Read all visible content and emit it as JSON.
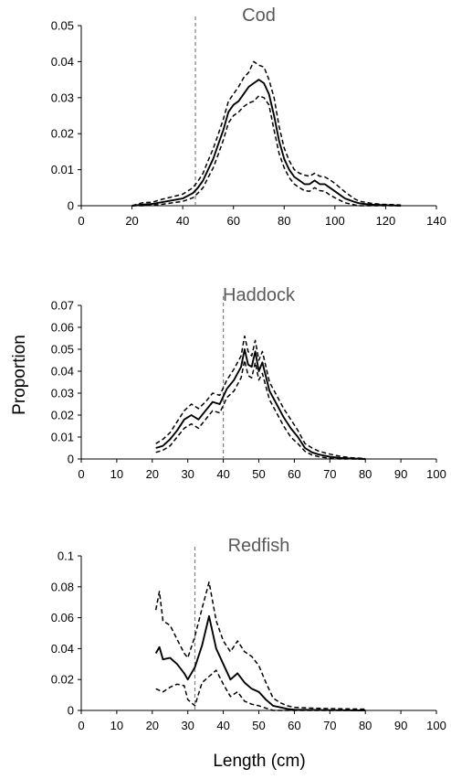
{
  "figure": {
    "ylabel": "Proportion",
    "xlabel": "Length (cm)"
  },
  "chart_data": [
    {
      "type": "line",
      "title": "Cod",
      "xlim": [
        0,
        140
      ],
      "ylim": [
        0,
        0.05
      ],
      "xticks": [
        "0",
        "20",
        "40",
        "60",
        "80",
        "100",
        "120",
        "140"
      ],
      "yticks": [
        "0",
        "0.01",
        "0.02",
        "0.03",
        "0.04",
        "0.05"
      ],
      "reference_line_x": 45,
      "x": [
        20,
        24,
        28,
        32,
        36,
        40,
        44,
        46,
        48,
        50,
        52,
        54,
        56,
        58,
        60,
        62,
        64,
        66,
        68,
        70,
        72,
        74,
        76,
        78,
        80,
        82,
        84,
        86,
        88,
        90,
        92,
        94,
        96,
        98,
        100,
        102,
        104,
        106,
        108,
        110,
        114,
        118,
        122,
        126
      ],
      "series": [
        {
          "values": [
            0,
            0.0003,
            0.0005,
            0.001,
            0.0015,
            0.002,
            0.0035,
            0.005,
            0.007,
            0.01,
            0.013,
            0.017,
            0.021,
            0.026,
            0.028,
            0.029,
            0.031,
            0.033,
            0.034,
            0.035,
            0.034,
            0.031,
            0.025,
            0.018,
            0.013,
            0.01,
            0.008,
            0.007,
            0.006,
            0.006,
            0.007,
            0.006,
            0.006,
            0.005,
            0.004,
            0.003,
            0.002,
            0.0015,
            0.001,
            0.0006,
            0.0003,
            0.0002,
            0.0001,
            0
          ]
        },
        {
          "values": [
            0,
            0.0008,
            0.001,
            0.0018,
            0.0025,
            0.0032,
            0.005,
            0.0068,
            0.009,
            0.0125,
            0.0158,
            0.0198,
            0.024,
            0.029,
            0.031,
            0.033,
            0.0355,
            0.037,
            0.04,
            0.039,
            0.0385,
            0.035,
            0.03,
            0.022,
            0.016,
            0.0125,
            0.01,
            0.009,
            0.0085,
            0.0082,
            0.009,
            0.0082,
            0.008,
            0.0072,
            0.0062,
            0.005,
            0.0038,
            0.0028,
            0.0018,
            0.0012,
            0.0007,
            0.0004,
            0.0003,
            0.0002
          ]
        },
        {
          "values": [
            0,
            0,
            0.0002,
            0.0004,
            0.0008,
            0.0012,
            0.0022,
            0.0035,
            0.005,
            0.0078,
            0.0105,
            0.0142,
            0.0182,
            0.023,
            0.025,
            0.026,
            0.0275,
            0.0285,
            0.029,
            0.0305,
            0.03,
            0.028,
            0.021,
            0.0145,
            0.0105,
            0.0078,
            0.006,
            0.005,
            0.0042,
            0.004,
            0.005,
            0.0042,
            0.004,
            0.003,
            0.0022,
            0.0015,
            0.0008,
            0.0005,
            0.0002,
            0,
            0,
            0,
            0,
            0
          ]
        }
      ]
    },
    {
      "type": "line",
      "title": "Haddock",
      "xlim": [
        0,
        100
      ],
      "ylim": [
        0,
        0.07
      ],
      "xticks": [
        "0",
        "10",
        "20",
        "30",
        "40",
        "50",
        "60",
        "70",
        "80",
        "90",
        "100"
      ],
      "yticks": [
        "0",
        "0.01",
        "0.02",
        "0.03",
        "0.04",
        "0.05",
        "0.06",
        "0.07"
      ],
      "reference_line_x": 40,
      "x": [
        21,
        23,
        25,
        27,
        29,
        31,
        33,
        35,
        37,
        39,
        41,
        43,
        45,
        46,
        47,
        48,
        49,
        50,
        51,
        53,
        55,
        57,
        59,
        61,
        63,
        65,
        67,
        70,
        73,
        76,
        80
      ],
      "series": [
        {
          "values": [
            0.005,
            0.006,
            0.009,
            0.013,
            0.018,
            0.02,
            0.018,
            0.022,
            0.026,
            0.025,
            0.032,
            0.036,
            0.042,
            0.05,
            0.043,
            0.042,
            0.049,
            0.04,
            0.044,
            0.031,
            0.025,
            0.019,
            0.014,
            0.01,
            0.005,
            0.003,
            0.002,
            0.001,
            0.0005,
            0.0002,
            0
          ]
        },
        {
          "values": [
            0.007,
            0.009,
            0.012,
            0.017,
            0.022,
            0.025,
            0.023,
            0.026,
            0.03,
            0.029,
            0.036,
            0.041,
            0.047,
            0.056,
            0.049,
            0.047,
            0.054,
            0.045,
            0.049,
            0.035,
            0.029,
            0.023,
            0.018,
            0.013,
            0.007,
            0.005,
            0.0035,
            0.0022,
            0.0012,
            0.0006,
            0.0002
          ]
        },
        {
          "values": [
            0.003,
            0.004,
            0.006,
            0.01,
            0.014,
            0.016,
            0.014,
            0.018,
            0.022,
            0.021,
            0.028,
            0.031,
            0.037,
            0.045,
            0.038,
            0.037,
            0.044,
            0.036,
            0.039,
            0.027,
            0.021,
            0.015,
            0.01,
            0.007,
            0.0035,
            0.0018,
            0.001,
            0.0003,
            0,
            0,
            0
          ]
        }
      ]
    },
    {
      "type": "line",
      "title": "Redfish",
      "xlim": [
        0,
        100
      ],
      "ylim": [
        0,
        0.1
      ],
      "xticks": [
        "0",
        "10",
        "20",
        "30",
        "40",
        "50",
        "60",
        "70",
        "80",
        "90",
        "100"
      ],
      "yticks": [
        "0",
        "0.02",
        "0.04",
        "0.06",
        "0.08",
        "0.1"
      ],
      "reference_line_x": 32,
      "x": [
        21,
        22,
        23,
        25,
        27,
        29,
        30,
        32,
        34,
        36,
        38,
        40,
        42,
        44,
        46,
        48,
        50,
        52,
        54,
        56,
        58,
        60,
        65,
        70,
        75,
        80
      ],
      "series": [
        {
          "values": [
            0.037,
            0.041,
            0.033,
            0.034,
            0.03,
            0.024,
            0.02,
            0.028,
            0.042,
            0.061,
            0.04,
            0.03,
            0.02,
            0.024,
            0.018,
            0.014,
            0.012,
            0.007,
            0.003,
            0.002,
            0.001,
            0.0005,
            0.0003,
            0.0002,
            0.0001,
            0
          ]
        },
        {
          "values": [
            0.065,
            0.077,
            0.058,
            0.055,
            0.046,
            0.037,
            0.034,
            0.048,
            0.066,
            0.083,
            0.058,
            0.045,
            0.038,
            0.045,
            0.038,
            0.035,
            0.029,
            0.018,
            0.008,
            0.005,
            0.003,
            0.002,
            0.0015,
            0.0012,
            0.001,
            0.0008
          ]
        },
        {
          "values": [
            0.014,
            0.013,
            0.012,
            0.015,
            0.017,
            0.016,
            0.007,
            0.003,
            0.018,
            0.022,
            0.026,
            0.017,
            0.009,
            0.012,
            0.006,
            0.004,
            0.003,
            0.0015,
            0,
            0,
            0,
            0,
            0,
            0,
            0,
            0
          ]
        }
      ]
    }
  ]
}
